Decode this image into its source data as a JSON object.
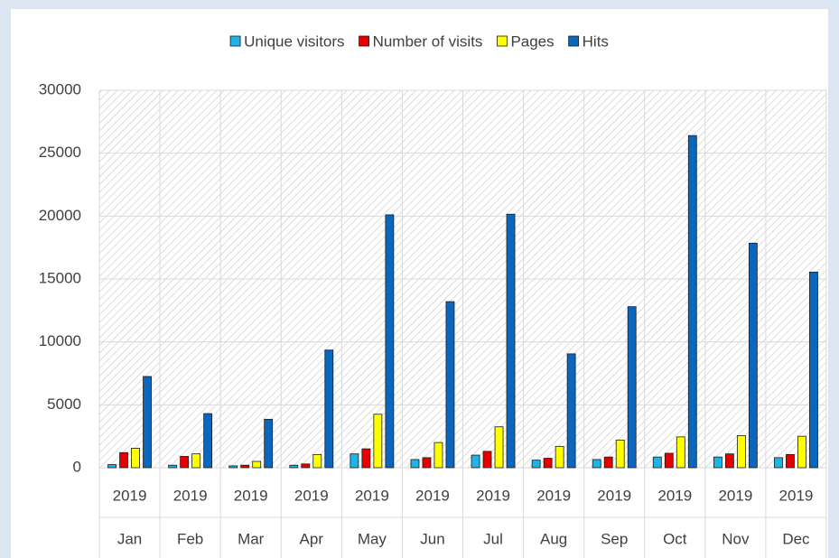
{
  "chart_data": {
    "type": "bar",
    "categories": [
      "Jan",
      "Feb",
      "Mar",
      "Apr",
      "May",
      "Jun",
      "Jul",
      "Aug",
      "Sep",
      "Oct",
      "Nov",
      "Dec"
    ],
    "years": [
      "2019",
      "2019",
      "2019",
      "2019",
      "2019",
      "2019",
      "2019",
      "2019",
      "2019",
      "2019",
      "2019",
      "2019"
    ],
    "series": [
      {
        "name": "Unique visitors",
        "color": "#1fb4e6",
        "values": [
          250,
          200,
          150,
          200,
          1100,
          650,
          1000,
          600,
          650,
          850,
          850,
          800
        ]
      },
      {
        "name": "Number of visits",
        "color": "#e60000",
        "values": [
          1200,
          900,
          200,
          300,
          1500,
          800,
          1300,
          750,
          850,
          1150,
          1100,
          1050
        ]
      },
      {
        "name": "Pages",
        "color": "#ffff00",
        "values": [
          1550,
          1100,
          500,
          1050,
          4250,
          2000,
          3250,
          1700,
          2200,
          2450,
          2550,
          2500
        ]
      },
      {
        "name": "Hits",
        "color": "#0b67bd",
        "values": [
          7250,
          4300,
          3850,
          9350,
          20100,
          13200,
          20150,
          9050,
          12800,
          26400,
          17850,
          15550
        ]
      }
    ],
    "ylim": [
      0,
      30000
    ],
    "yticks": [
      0,
      5000,
      10000,
      15000,
      20000,
      25000,
      30000
    ],
    "grid": true,
    "legend": "top"
  }
}
